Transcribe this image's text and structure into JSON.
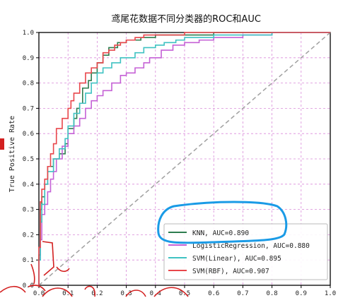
{
  "chart_data": {
    "type": "line",
    "title": "鸢尾花数据不同分类器的ROC和AUC",
    "xlabel": "",
    "ylabel": "True Positive Rate",
    "xlim": [
      0,
      1
    ],
    "ylim": [
      0,
      1
    ],
    "xticks": [
      "0.0",
      "0.1",
      "0.2",
      "0.3",
      "0.4",
      "0.5",
      "0.6",
      "0.7",
      "0.8",
      "0.9",
      "1.0"
    ],
    "yticks": [
      "0.0",
      "0.1",
      "0.2",
      "0.3",
      "0.4",
      "0.5",
      "0.6",
      "0.7",
      "0.8",
      "0.9",
      "1.0"
    ],
    "grid": true,
    "legend_position": "lower-right",
    "colors": {
      "knn": "#2e7d4f",
      "lr": "#c561d6",
      "svm_linear": "#3fc2c2",
      "svm_rbf": "#e8464b",
      "diagonal": "#a0a0a0",
      "grid": "#d98ad9",
      "annotation": "#1a9be6",
      "marker": "#d32020"
    },
    "series": [
      {
        "key": "knn",
        "name": "KNN, AUC=0.890",
        "x": [
          0,
          0.005,
          0.01,
          0.02,
          0.03,
          0.05,
          0.07,
          0.09,
          0.1,
          0.12,
          0.13,
          0.14,
          0.15,
          0.17,
          0.18,
          0.2,
          0.22,
          0.24,
          0.27,
          0.3,
          0.35,
          0.4,
          0.5,
          0.6,
          0.7,
          0.8,
          0.9,
          1.0
        ],
        "y": [
          0,
          0.12,
          0.3,
          0.35,
          0.4,
          0.47,
          0.5,
          0.52,
          0.56,
          0.62,
          0.66,
          0.7,
          0.72,
          0.78,
          0.81,
          0.84,
          0.88,
          0.91,
          0.94,
          0.96,
          0.97,
          0.98,
          0.99,
          0.99,
          1.0,
          1.0,
          1.0,
          1.0
        ]
      },
      {
        "key": "lr",
        "name": "LogisticRegression, AUC=0.880",
        "x": [
          0,
          0.005,
          0.01,
          0.02,
          0.03,
          0.04,
          0.05,
          0.06,
          0.08,
          0.1,
          0.12,
          0.14,
          0.16,
          0.18,
          0.2,
          0.22,
          0.25,
          0.28,
          0.3,
          0.33,
          0.36,
          0.38,
          0.42,
          0.46,
          0.5,
          0.55,
          0.6,
          0.7,
          0.8,
          0.9,
          1.0
        ],
        "y": [
          0,
          0.1,
          0.18,
          0.28,
          0.32,
          0.37,
          0.42,
          0.45,
          0.5,
          0.55,
          0.6,
          0.63,
          0.66,
          0.7,
          0.73,
          0.75,
          0.77,
          0.8,
          0.83,
          0.84,
          0.86,
          0.88,
          0.9,
          0.93,
          0.95,
          0.96,
          0.97,
          0.98,
          0.99,
          1.0,
          1.0
        ]
      },
      {
        "key": "svm_linear",
        "name": "SVM(Linear), AUC=0.895",
        "x": [
          0,
          0.005,
          0.01,
          0.02,
          0.03,
          0.05,
          0.07,
          0.09,
          0.1,
          0.12,
          0.14,
          0.16,
          0.18,
          0.2,
          0.22,
          0.25,
          0.28,
          0.3,
          0.33,
          0.36,
          0.4,
          0.43,
          0.47,
          0.5,
          0.6,
          0.7,
          0.8,
          0.9,
          1.0
        ],
        "y": [
          0,
          0.1,
          0.25,
          0.32,
          0.4,
          0.45,
          0.5,
          0.54,
          0.58,
          0.63,
          0.68,
          0.72,
          0.76,
          0.8,
          0.84,
          0.86,
          0.88,
          0.9,
          0.9,
          0.92,
          0.94,
          0.95,
          0.96,
          0.97,
          0.98,
          0.99,
          0.99,
          1.0,
          1.0
        ]
      },
      {
        "key": "svm_rbf",
        "name": "SVM(RBF), AUC=0.907",
        "x": [
          0,
          0.005,
          0.01,
          0.02,
          0.03,
          0.04,
          0.05,
          0.06,
          0.08,
          0.1,
          0.11,
          0.12,
          0.14,
          0.16,
          0.18,
          0.2,
          0.22,
          0.24,
          0.26,
          0.28,
          0.3,
          0.33,
          0.36,
          0.4,
          0.45,
          0.5,
          0.6,
          0.7,
          0.8,
          0.9,
          1.0
        ],
        "y": [
          0,
          0.15,
          0.33,
          0.38,
          0.42,
          0.47,
          0.52,
          0.56,
          0.62,
          0.66,
          0.7,
          0.73,
          0.76,
          0.8,
          0.84,
          0.86,
          0.88,
          0.92,
          0.93,
          0.95,
          0.96,
          0.97,
          0.98,
          0.99,
          0.99,
          0.99,
          1.0,
          1.0,
          1.0,
          1.0,
          1.0
        ]
      }
    ]
  }
}
